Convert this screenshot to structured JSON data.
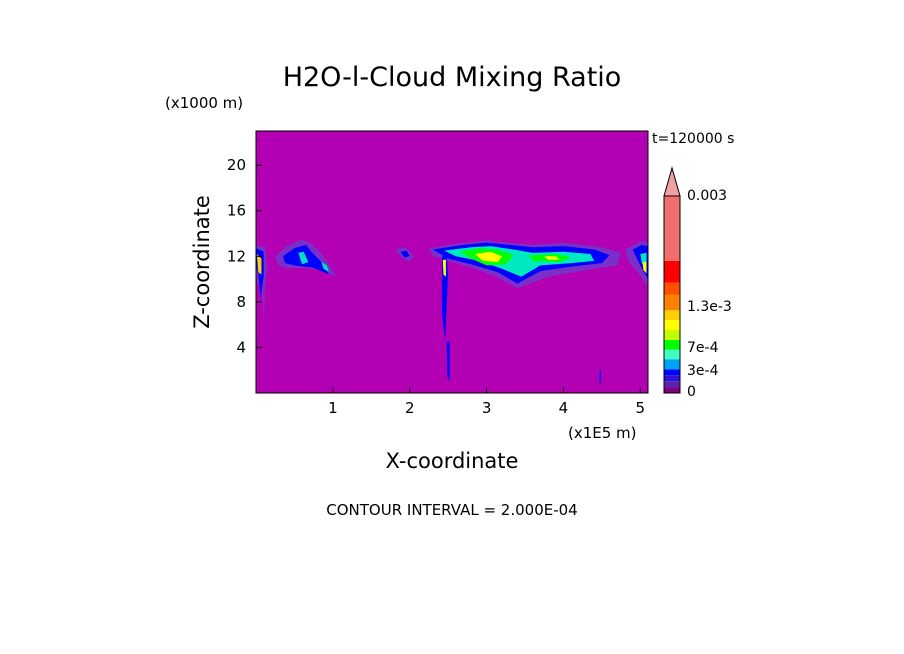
{
  "chart_data": {
    "type": "heatmap",
    "title": "H2O-l-Cloud Mixing Ratio",
    "time_label": "t=120000 s",
    "xlabel": "X-coordinate",
    "xunit": "(x1E5 m)",
    "ylabel": "Z-coordinate",
    "yunit": "(x1000 m)",
    "xlim": [
      0,
      5.1
    ],
    "ylim": [
      0,
      23
    ],
    "xticks": [
      "1",
      "2",
      "3",
      "4",
      "5"
    ],
    "yticks": [
      "4",
      "8",
      "12",
      "16",
      "20"
    ],
    "footnote": "CONTOUR INTERVAL = 2.000E-04",
    "colorbar": {
      "labels": [
        "0.003",
        "1.3e-3",
        "7e-4",
        "3e-4",
        "0"
      ],
      "colors": [
        "#800080",
        "#5a20b0",
        "#3010d0",
        "#0000ff",
        "#00a0ff",
        "#40ffc0",
        "#00ff00",
        "#c0ff00",
        "#ffff00",
        "#ffd000",
        "#ff8000",
        "#ff5000",
        "#ff0000",
        "#f07070"
      ],
      "extend_color": "#f0a0a0"
    },
    "background_color": "#b400b4",
    "cloud_blobs": [
      {
        "x": 0.03,
        "z": 11.5,
        "color": "#8040c0"
      },
      {
        "x": 0.6,
        "z": 12.0,
        "color": "#0000ff"
      },
      {
        "x": 1.95,
        "z": 12.2,
        "color": "#8040c0"
      },
      {
        "x": 2.8,
        "z": 12.0,
        "color": "#0000ff"
      },
      {
        "x": 3.5,
        "z": 11.9,
        "color": "#00ff00"
      },
      {
        "x": 4.95,
        "z": 12.0,
        "color": "#0000ff"
      }
    ]
  }
}
